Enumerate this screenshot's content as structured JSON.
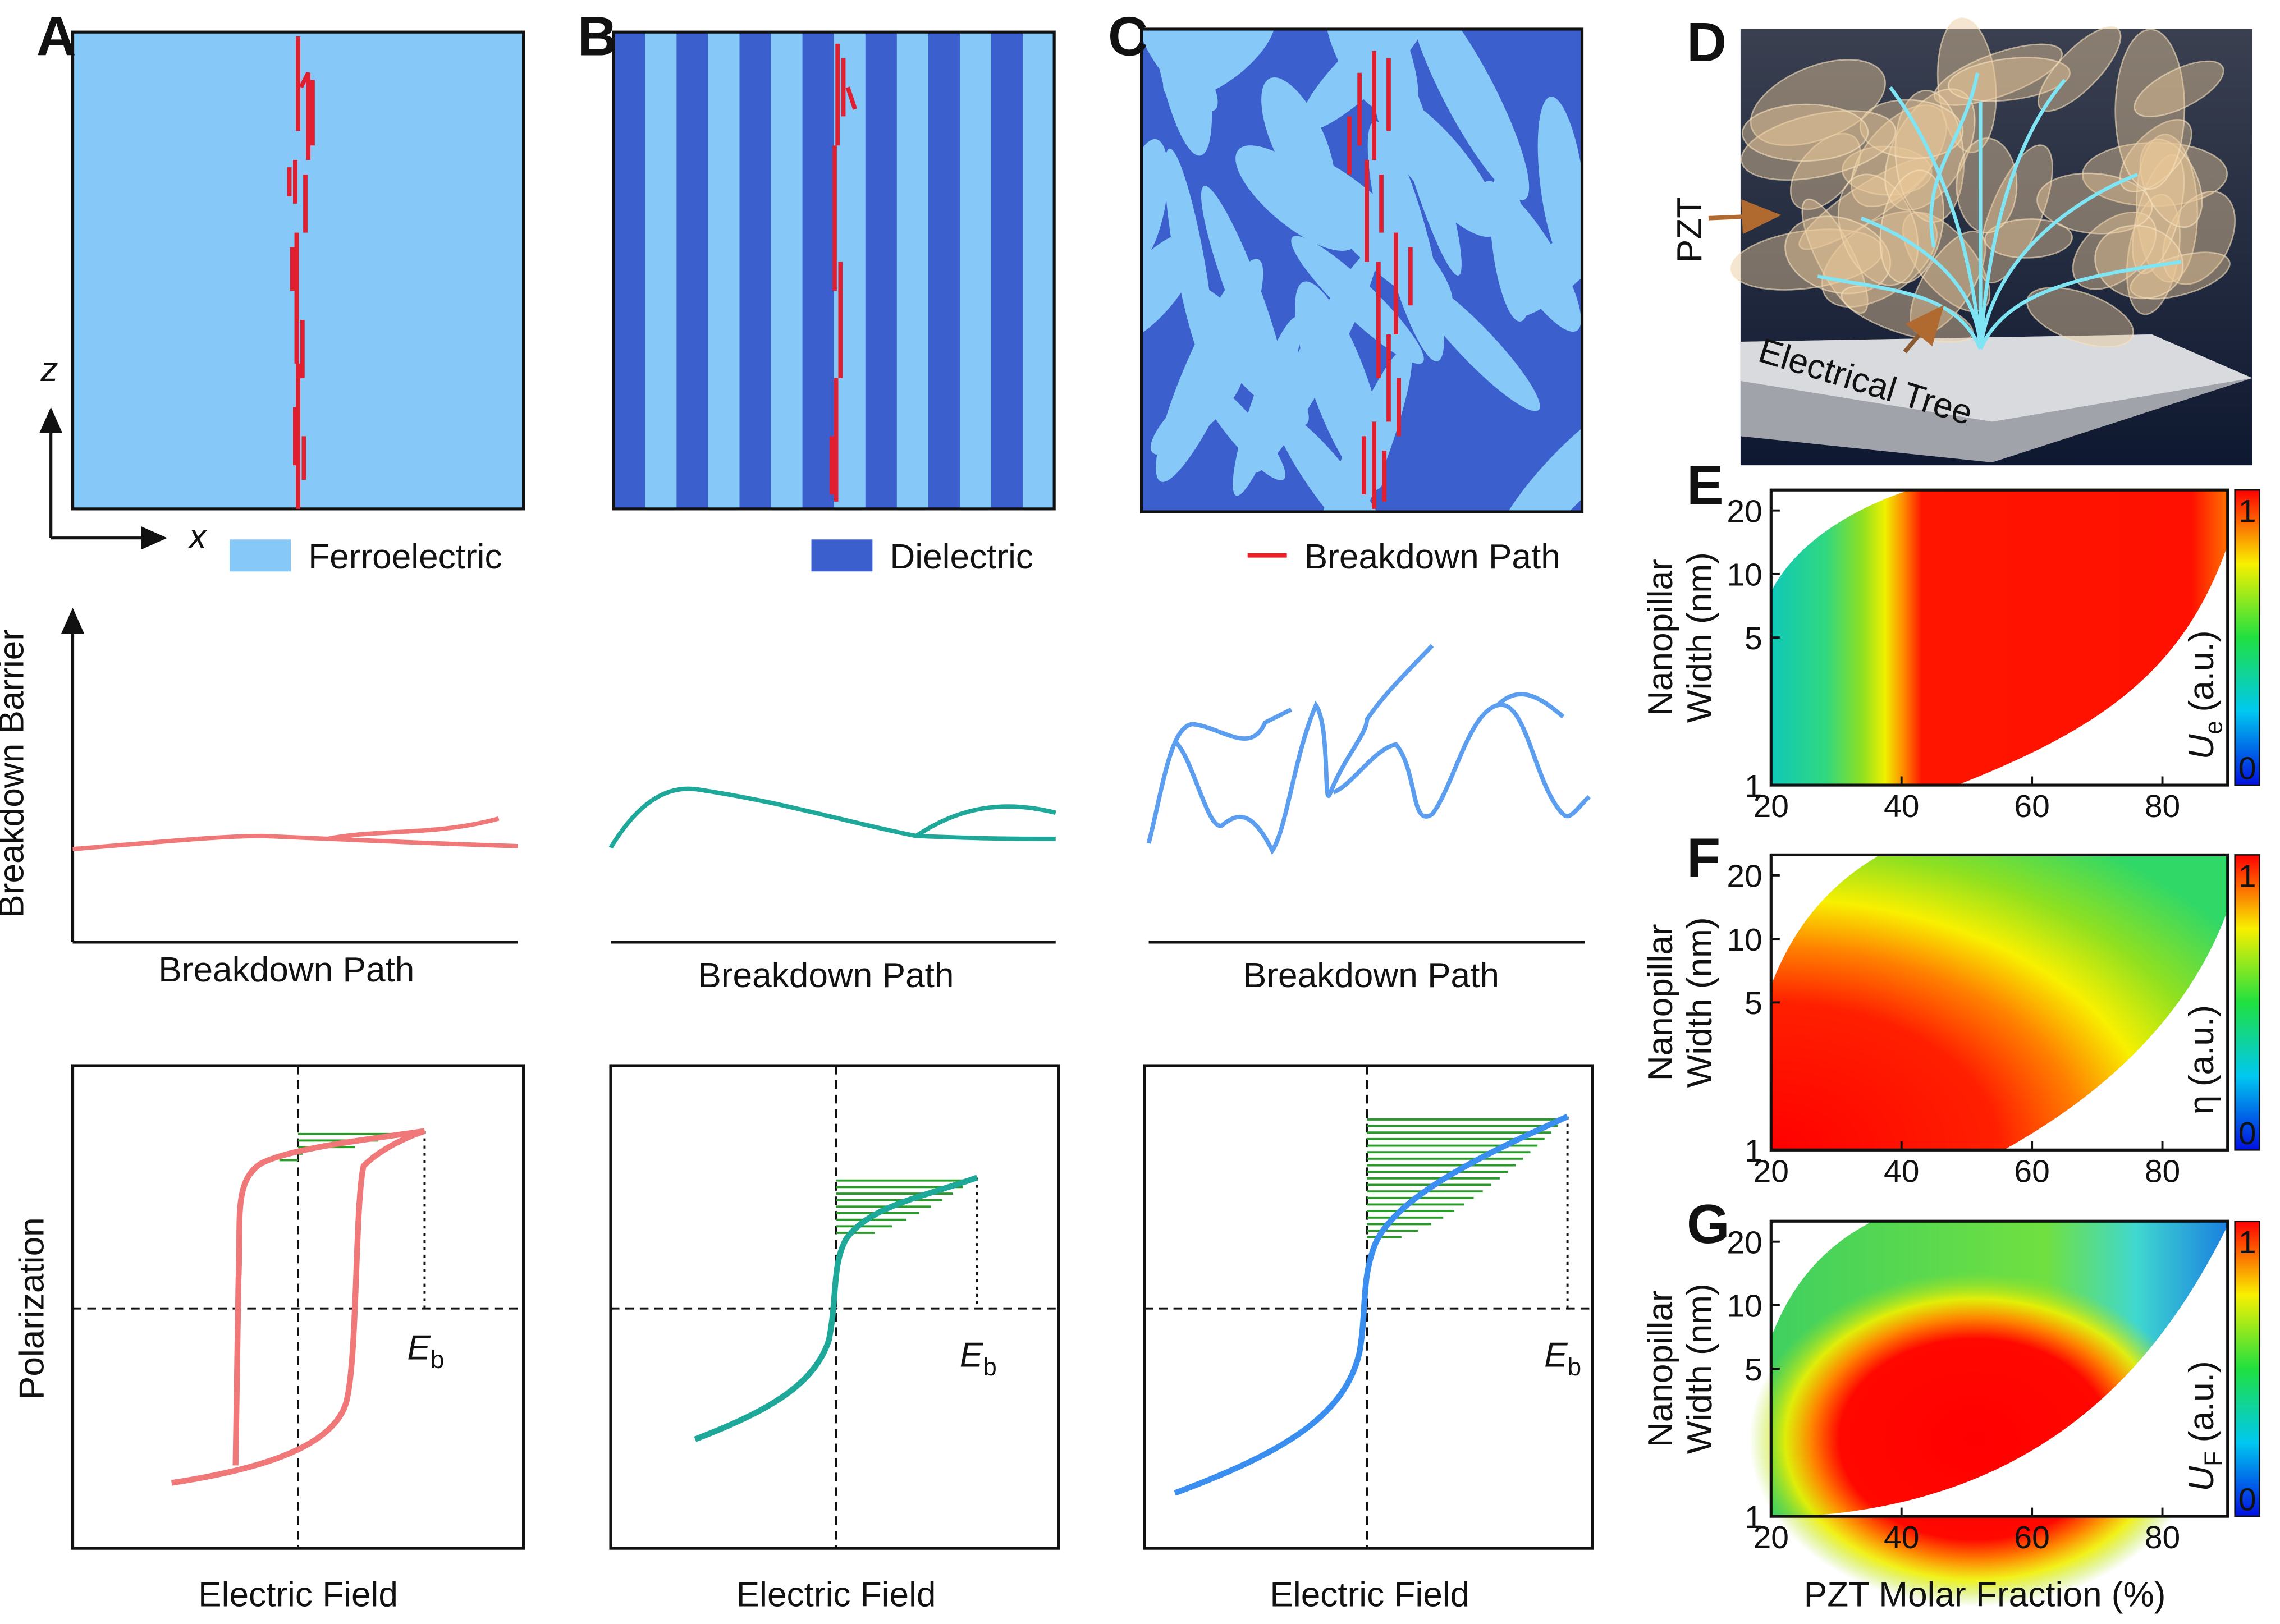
{
  "panel_labels": [
    "A",
    "B",
    "C",
    "D"
  ],
  "legend": [
    {
      "label": "Ferroelectric",
      "color": "#86c8f7"
    },
    {
      "label": "Dielectric",
      "color": "#3b5fcc"
    },
    {
      "label": "Breakdown Path",
      "color": "#e8202a"
    }
  ],
  "axes": {
    "x": "x",
    "z": "z",
    "barrier": "Breakdown Barrier",
    "path": "Breakdown Path",
    "polarization": "Polarization",
    "field": "Electric Field"
  },
  "eb": {
    "main": "E",
    "sub": "b"
  },
  "d_labels": {
    "pzt": "PZT",
    "tree": "Electrical Tree"
  },
  "maps": {
    "xlabel": "PZT Molar Fraction (%)",
    "ylabel": [
      "Nanopillar",
      "Width (nm)"
    ],
    "xlim": [
      20,
      90
    ],
    "xticks": [
      20,
      40,
      60,
      80
    ],
    "ylim": [
      1,
      25
    ],
    "yticks": [
      1,
      5,
      10,
      20
    ],
    "log_y": true,
    "cbar_lim": [
      0,
      1
    ],
    "cbar_ticks": [
      0,
      1
    ],
    "panels": [
      {
        "label": "E",
        "quantity": "U",
        "sub": "e",
        "unit": "(a.u.)"
      },
      {
        "label": "F",
        "quantity": "η",
        "unit": "(a.u.)"
      },
      {
        "label": "G",
        "quantity": "U",
        "sub": "F",
        "unit": "(a.u.)"
      }
    ]
  }
}
